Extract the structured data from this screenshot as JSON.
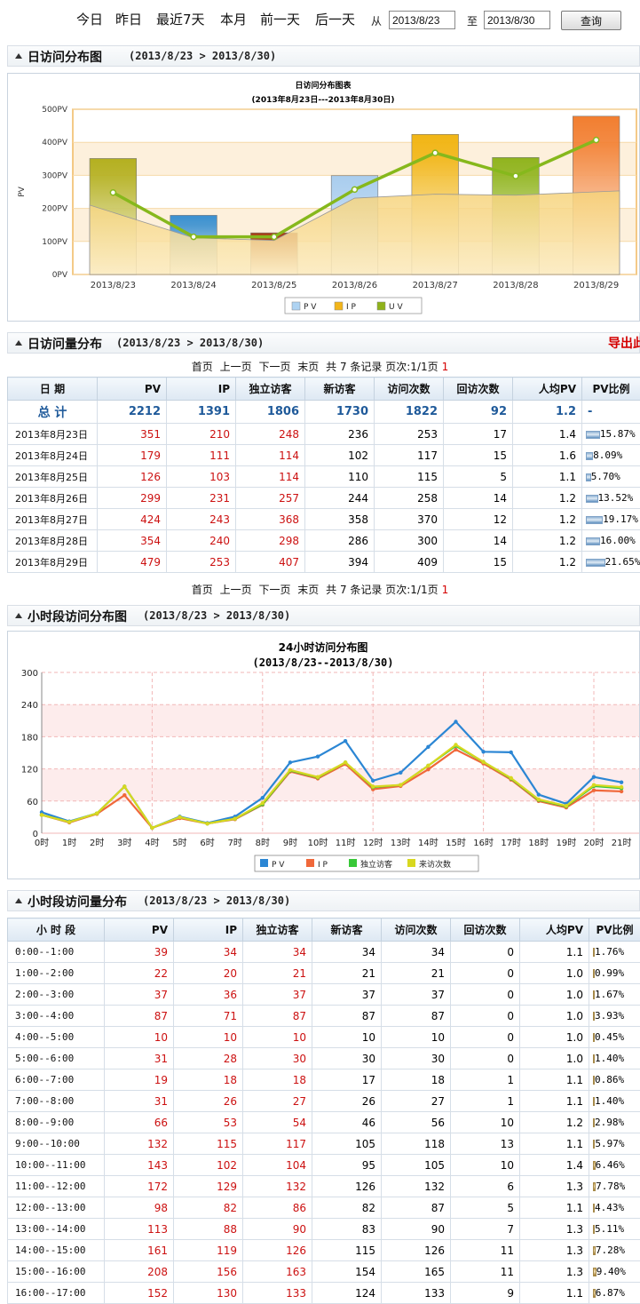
{
  "toolbar": {
    "links": [
      "今日",
      "昨日",
      "最近7天",
      "本月",
      "前一天",
      "后一天"
    ],
    "from_label": "从",
    "to_label": "至",
    "start_date": "2013/8/23",
    "end_date": "2013/8/30",
    "query_label": "查询"
  },
  "sections": {
    "daily_chart": {
      "title": "日访问分布图",
      "range": "(2013/8/23 > 2013/8/30)"
    },
    "daily_table": {
      "title": "日访问量分布",
      "range": "(2013/8/23 > 2013/8/30)",
      "export": "导出此"
    },
    "hourly_chart": {
      "title": "小时段访问分布图",
      "range": "(2013/8/23 > 2013/8/30)"
    },
    "hourly_table": {
      "title": "小时段访问量分布",
      "range": "(2013/8/23 > 2013/8/30)"
    }
  },
  "pager": {
    "first": "首页",
    "prev": "上一页",
    "next": "下一页",
    "last": "末页",
    "summary": "共 7 条记录 页次:1/1页",
    "current": "1"
  },
  "daily_table": {
    "headers": [
      "日 期",
      "PV",
      "IP",
      "独立访客",
      "新访客",
      "访问次数",
      "回访次数",
      "人均PV",
      "PV比例"
    ],
    "total": {
      "label": "总 计",
      "pv": "2212",
      "ip": "1391",
      "uv": "1806",
      "new": "1730",
      "visits": "1822",
      "returns": "92",
      "avg": "1.2",
      "pct": "-"
    },
    "rows": [
      {
        "date": "2013年8月23日",
        "pv": "351",
        "ip": "210",
        "uv": "248",
        "new": "236",
        "visits": "253",
        "returns": "17",
        "avg": "1.4",
        "pct": "15.87%",
        "pct_value": 15.87
      },
      {
        "date": "2013年8月24日",
        "pv": "179",
        "ip": "111",
        "uv": "114",
        "new": "102",
        "visits": "117",
        "returns": "15",
        "avg": "1.6",
        "pct": "8.09%",
        "pct_value": 8.09
      },
      {
        "date": "2013年8月25日",
        "pv": "126",
        "ip": "103",
        "uv": "114",
        "new": "110",
        "visits": "115",
        "returns": "5",
        "avg": "1.1",
        "pct": "5.70%",
        "pct_value": 5.7
      },
      {
        "date": "2013年8月26日",
        "pv": "299",
        "ip": "231",
        "uv": "257",
        "new": "244",
        "visits": "258",
        "returns": "14",
        "avg": "1.2",
        "pct": "13.52%",
        "pct_value": 13.52
      },
      {
        "date": "2013年8月27日",
        "pv": "424",
        "ip": "243",
        "uv": "368",
        "new": "358",
        "visits": "370",
        "returns": "12",
        "avg": "1.2",
        "pct": "19.17%",
        "pct_value": 19.17
      },
      {
        "date": "2013年8月28日",
        "pv": "354",
        "ip": "240",
        "uv": "298",
        "new": "286",
        "visits": "300",
        "returns": "14",
        "avg": "1.2",
        "pct": "16.00%",
        "pct_value": 16.0
      },
      {
        "date": "2013年8月29日",
        "pv": "479",
        "ip": "253",
        "uv": "407",
        "new": "394",
        "visits": "409",
        "returns": "15",
        "avg": "1.2",
        "pct": "21.65%",
        "pct_value": 21.65
      }
    ]
  },
  "hourly_table": {
    "headers": [
      "小 时 段",
      "PV",
      "IP",
      "独立访客",
      "新访客",
      "访问次数",
      "回访次数",
      "人均PV",
      "PV比例"
    ],
    "rows": [
      {
        "slot": "0:00--1:00",
        "pv": "39",
        "ip": "34",
        "uv": "34",
        "new": "34",
        "visits": "34",
        "returns": "0",
        "avg": "1.1",
        "pct": "1.76%",
        "pct_value": 1.76
      },
      {
        "slot": "1:00--2:00",
        "pv": "22",
        "ip": "20",
        "uv": "21",
        "new": "21",
        "visits": "21",
        "returns": "0",
        "avg": "1.0",
        "pct": "0.99%",
        "pct_value": 0.99
      },
      {
        "slot": "2:00--3:00",
        "pv": "37",
        "ip": "36",
        "uv": "37",
        "new": "37",
        "visits": "37",
        "returns": "0",
        "avg": "1.0",
        "pct": "1.67%",
        "pct_value": 1.67
      },
      {
        "slot": "3:00--4:00",
        "pv": "87",
        "ip": "71",
        "uv": "87",
        "new": "87",
        "visits": "87",
        "returns": "0",
        "avg": "1.0",
        "pct": "3.93%",
        "pct_value": 3.93
      },
      {
        "slot": "4:00--5:00",
        "pv": "10",
        "ip": "10",
        "uv": "10",
        "new": "10",
        "visits": "10",
        "returns": "0",
        "avg": "1.0",
        "pct": "0.45%",
        "pct_value": 0.45
      },
      {
        "slot": "5:00--6:00",
        "pv": "31",
        "ip": "28",
        "uv": "30",
        "new": "30",
        "visits": "30",
        "returns": "0",
        "avg": "1.0",
        "pct": "1.40%",
        "pct_value": 1.4
      },
      {
        "slot": "6:00--7:00",
        "pv": "19",
        "ip": "18",
        "uv": "18",
        "new": "17",
        "visits": "18",
        "returns": "1",
        "avg": "1.1",
        "pct": "0.86%",
        "pct_value": 0.86
      },
      {
        "slot": "7:00--8:00",
        "pv": "31",
        "ip": "26",
        "uv": "27",
        "new": "26",
        "visits": "27",
        "returns": "1",
        "avg": "1.1",
        "pct": "1.40%",
        "pct_value": 1.4
      },
      {
        "slot": "8:00--9:00",
        "pv": "66",
        "ip": "53",
        "uv": "54",
        "new": "46",
        "visits": "56",
        "returns": "10",
        "avg": "1.2",
        "pct": "2.98%",
        "pct_value": 2.98
      },
      {
        "slot": "9:00--10:00",
        "pv": "132",
        "ip": "115",
        "uv": "117",
        "new": "105",
        "visits": "118",
        "returns": "13",
        "avg": "1.1",
        "pct": "5.97%",
        "pct_value": 5.97
      },
      {
        "slot": "10:00--11:00",
        "pv": "143",
        "ip": "102",
        "uv": "104",
        "new": "95",
        "visits": "105",
        "returns": "10",
        "avg": "1.4",
        "pct": "6.46%",
        "pct_value": 6.46
      },
      {
        "slot": "11:00--12:00",
        "pv": "172",
        "ip": "129",
        "uv": "132",
        "new": "126",
        "visits": "132",
        "returns": "6",
        "avg": "1.3",
        "pct": "7.78%",
        "pct_value": 7.78
      },
      {
        "slot": "12:00--13:00",
        "pv": "98",
        "ip": "82",
        "uv": "86",
        "new": "82",
        "visits": "87",
        "returns": "5",
        "avg": "1.1",
        "pct": "4.43%",
        "pct_value": 4.43
      },
      {
        "slot": "13:00--14:00",
        "pv": "113",
        "ip": "88",
        "uv": "90",
        "new": "83",
        "visits": "90",
        "returns": "7",
        "avg": "1.3",
        "pct": "5.11%",
        "pct_value": 5.11
      },
      {
        "slot": "14:00--15:00",
        "pv": "161",
        "ip": "119",
        "uv": "126",
        "new": "115",
        "visits": "126",
        "returns": "11",
        "avg": "1.3",
        "pct": "7.28%",
        "pct_value": 7.28
      },
      {
        "slot": "15:00--16:00",
        "pv": "208",
        "ip": "156",
        "uv": "163",
        "new": "154",
        "visits": "165",
        "returns": "11",
        "avg": "1.3",
        "pct": "9.40%",
        "pct_value": 9.4
      },
      {
        "slot": "16:00--17:00",
        "pv": "152",
        "ip": "130",
        "uv": "133",
        "new": "124",
        "visits": "133",
        "returns": "9",
        "avg": "1.1",
        "pct": "6.87%",
        "pct_value": 6.87
      }
    ]
  },
  "chart_data": [
    {
      "type": "bar",
      "title": "日访问分布图表",
      "subtitle": "(2013年8月23日---2013年8月30日)",
      "ylabel": "PV",
      "ylim": [
        0,
        500
      ],
      "yticks": [
        0,
        100,
        200,
        300,
        400,
        500
      ],
      "ytick_labels": [
        "0PV",
        "100PV",
        "200PV",
        "300PV",
        "400PV",
        "500PV"
      ],
      "categories": [
        "2013/8/23",
        "2013/8/24",
        "2013/8/25",
        "2013/8/26",
        "2013/8/27",
        "2013/8/28",
        "2013/8/29"
      ],
      "bar_colors": [
        "#b4b020",
        "#3a90d0",
        "#a83a14",
        "#a9cdee",
        "#f1b514",
        "#90b41e",
        "#f27e30"
      ],
      "series": [
        {
          "name": "P V",
          "type": "bar",
          "values": [
            351,
            179,
            126,
            299,
            424,
            354,
            479
          ]
        },
        {
          "name": "I P",
          "type": "area",
          "values": [
            210,
            111,
            103,
            231,
            243,
            240,
            253
          ]
        },
        {
          "name": "U V",
          "type": "line",
          "values": [
            248,
            114,
            114,
            257,
            368,
            298,
            407
          ]
        }
      ],
      "legend_colors": [
        "#aed3f2",
        "#f2b51a",
        "#8fb21a"
      ],
      "legend": "bottom-center",
      "grid": true
    },
    {
      "type": "line",
      "title": "24小时访问分布图",
      "subtitle": "(2013/8/23--2013/8/30)",
      "ylim": [
        0,
        300
      ],
      "yticks": [
        0,
        60,
        120,
        180,
        240,
        300
      ],
      "x": [
        "0时",
        "1时",
        "2时",
        "3时",
        "4时",
        "5时",
        "6时",
        "7时",
        "8时",
        "9时",
        "10时",
        "11时",
        "12时",
        "13时",
        "14时",
        "15时",
        "16时",
        "17时",
        "18时",
        "19时",
        "20时",
        "21时"
      ],
      "series": [
        {
          "name": "P V",
          "color": "#2b86d4",
          "values": [
            39,
            22,
            37,
            87,
            10,
            31,
            19,
            31,
            66,
            132,
            143,
            172,
            98,
            113,
            161,
            208,
            152,
            151,
            72,
            55,
            105,
            95
          ]
        },
        {
          "name": "I P",
          "color": "#f0683a",
          "values": [
            34,
            20,
            36,
            71,
            10,
            28,
            18,
            26,
            53,
            115,
            102,
            129,
            82,
            88,
            119,
            156,
            130,
            100,
            60,
            48,
            80,
            78
          ]
        },
        {
          "name": "独立访客",
          "color": "#38c838",
          "values": [
            34,
            21,
            37,
            87,
            10,
            30,
            18,
            27,
            54,
            117,
            104,
            132,
            86,
            90,
            126,
            163,
            133,
            102,
            62,
            50,
            88,
            84
          ]
        },
        {
          "name": "来访次数",
          "color": "#d8d820",
          "values": [
            34,
            21,
            37,
            87,
            10,
            30,
            18,
            27,
            56,
            118,
            105,
            132,
            87,
            90,
            126,
            165,
            133,
            103,
            63,
            51,
            90,
            86
          ]
        }
      ],
      "legend": "bottom-center",
      "grid": true
    }
  ]
}
